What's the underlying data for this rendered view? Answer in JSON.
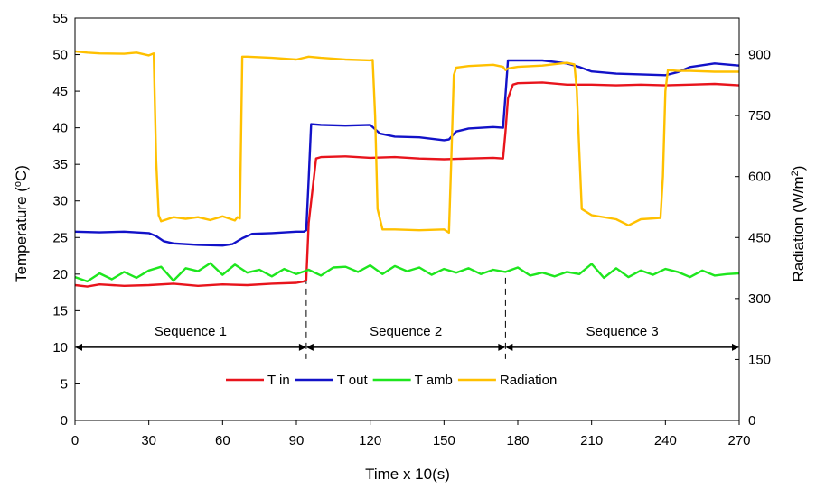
{
  "chart_data": {
    "type": "line",
    "xlabel": "Time x 10(s)",
    "ylabel": "Temperature (°C)",
    "ylabel_parts": [
      "Temperature (",
      "o",
      "C)"
    ],
    "y2label": "Radiation (W/m²)",
    "y2label_parts": [
      "Radiation (W/m",
      "2",
      ")"
    ],
    "xlim": [
      0,
      270
    ],
    "ylim": [
      0,
      55
    ],
    "y2lim": [
      0,
      990
    ],
    "xticks": [
      0,
      30,
      60,
      90,
      120,
      150,
      180,
      210,
      240,
      270
    ],
    "yticks": [
      0,
      5,
      10,
      15,
      20,
      25,
      30,
      35,
      40,
      45,
      50,
      55
    ],
    "y2ticks": [
      0,
      150,
      300,
      450,
      600,
      750,
      900
    ],
    "grid": false,
    "legend_position": "bottom-center",
    "sequences": [
      {
        "label": "Sequence 1",
        "x_start": 0,
        "x_end": 94
      },
      {
        "label": "Sequence 2",
        "x_start": 94,
        "x_end": 175
      },
      {
        "label": "Sequence 3",
        "x_start": 175,
        "x_end": 270
      }
    ],
    "sequence_arrow_y": 10,
    "dividers_x": [
      94,
      175
    ],
    "series": [
      {
        "name": "T in",
        "axis": "left",
        "color": "#e8141c",
        "x": [
          0,
          5,
          10,
          20,
          30,
          40,
          50,
          60,
          70,
          80,
          90,
          93,
          94,
          95,
          98,
          100,
          110,
          120,
          130,
          140,
          150,
          160,
          170,
          174,
          175,
          176,
          178,
          180,
          190,
          200,
          210,
          220,
          230,
          240,
          250,
          260,
          270
        ],
        "values": [
          18.5,
          18.3,
          18.6,
          18.4,
          18.5,
          18.7,
          18.4,
          18.6,
          18.5,
          18.7,
          18.8,
          19.0,
          19.2,
          27.0,
          35.8,
          36.0,
          36.1,
          35.9,
          36.0,
          35.8,
          35.7,
          35.8,
          35.9,
          35.8,
          39.5,
          44.0,
          45.9,
          46.1,
          46.2,
          45.9,
          45.9,
          45.8,
          45.9,
          45.8,
          45.9,
          46.0,
          45.8
        ]
      },
      {
        "name": "T out",
        "axis": "left",
        "color": "#1212c8",
        "x": [
          0,
          10,
          20,
          30,
          33,
          36,
          40,
          50,
          60,
          64,
          68,
          72,
          80,
          90,
          93,
          94,
          95,
          96,
          100,
          110,
          120,
          124,
          130,
          140,
          150,
          152,
          155,
          160,
          170,
          174,
          175,
          176,
          180,
          190,
          200,
          205,
          210,
          220,
          230,
          240,
          245,
          250,
          260,
          270
        ],
        "values": [
          25.8,
          25.7,
          25.8,
          25.6,
          25.2,
          24.5,
          24.2,
          24.0,
          23.9,
          24.1,
          24.9,
          25.5,
          25.6,
          25.8,
          25.8,
          26.0,
          33.0,
          40.5,
          40.4,
          40.3,
          40.4,
          39.2,
          38.8,
          38.7,
          38.3,
          38.4,
          39.5,
          39.9,
          40.1,
          40.0,
          44.5,
          49.2,
          49.2,
          49.2,
          48.8,
          48.3,
          47.7,
          47.4,
          47.3,
          47.2,
          47.6,
          48.3,
          48.8,
          48.5
        ]
      },
      {
        "name": "T amb",
        "axis": "left",
        "color": "#1ee61e",
        "x": [
          0,
          5,
          10,
          15,
          20,
          25,
          30,
          35,
          40,
          45,
          50,
          55,
          60,
          65,
          70,
          75,
          80,
          85,
          90,
          95,
          100,
          105,
          110,
          115,
          120,
          125,
          130,
          135,
          140,
          145,
          150,
          155,
          160,
          165,
          170,
          175,
          180,
          185,
          190,
          195,
          200,
          205,
          210,
          215,
          220,
          225,
          230,
          235,
          240,
          245,
          250,
          255,
          260,
          265,
          270
        ],
        "values": [
          19.6,
          19.0,
          20.1,
          19.3,
          20.3,
          19.5,
          20.5,
          21.0,
          19.1,
          20.8,
          20.4,
          21.5,
          19.9,
          21.3,
          20.2,
          20.6,
          19.7,
          20.7,
          20.0,
          20.6,
          19.8,
          20.9,
          21.0,
          20.3,
          21.2,
          20.0,
          21.1,
          20.4,
          20.9,
          19.9,
          20.7,
          20.2,
          20.8,
          20.0,
          20.6,
          20.3,
          20.9,
          19.8,
          20.2,
          19.7,
          20.3,
          20.0,
          21.4,
          19.5,
          20.8,
          19.6,
          20.5,
          19.9,
          20.7,
          20.3,
          19.6,
          20.5,
          19.8,
          20.0,
          20.1
        ]
      },
      {
        "name": "Radiation",
        "axis": "right",
        "color": "#ffc000",
        "x": [
          0,
          5,
          10,
          20,
          25,
          30,
          32,
          33,
          34,
          35,
          40,
          45,
          50,
          55,
          60,
          65,
          66,
          67,
          68,
          70,
          80,
          90,
          95,
          100,
          110,
          120,
          121,
          122,
          123,
          125,
          130,
          140,
          150,
          152,
          153,
          154,
          155,
          160,
          170,
          174,
          175,
          176,
          180,
          190,
          200,
          203,
          204,
          205,
          206,
          210,
          220,
          225,
          230,
          238,
          239,
          240,
          241,
          245,
          250,
          260,
          270
        ],
        "values": [
          908,
          905,
          903,
          902,
          905,
          898,
          903,
          640,
          505,
          490,
          500,
          496,
          500,
          493,
          502,
          492,
          500,
          497,
          895,
          895,
          892,
          888,
          895,
          892,
          888,
          886,
          887,
          750,
          520,
          470,
          470,
          468,
          470,
          462,
          650,
          850,
          868,
          872,
          875,
          870,
          862,
          866,
          870,
          873,
          880,
          876,
          812,
          660,
          520,
          505,
          495,
          480,
          495,
          498,
          600,
          810,
          862,
          860,
          860,
          858,
          858
        ]
      }
    ]
  }
}
